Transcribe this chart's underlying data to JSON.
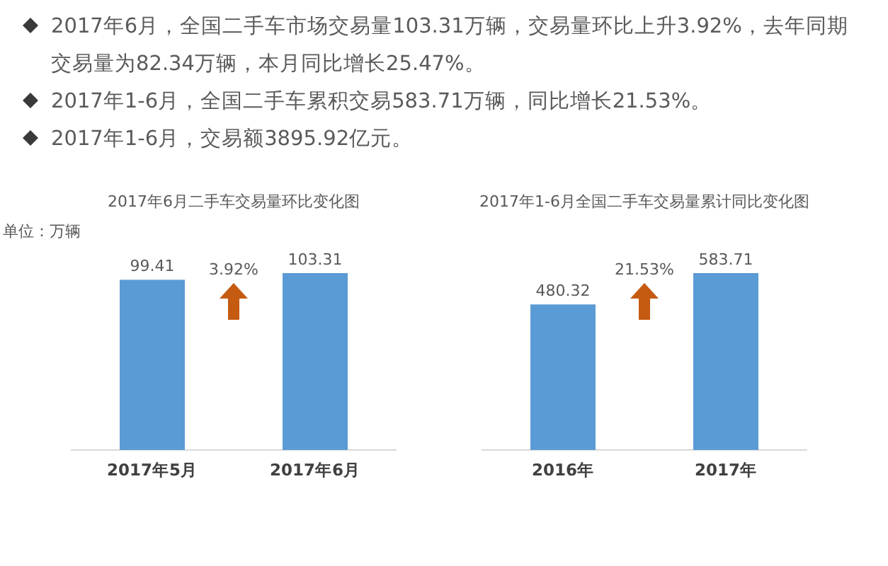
{
  "chart_data": [
    {
      "type": "other",
      "annotations": [
        "2017年6月，全国二手车市场交易量103.31万辆，交易量环比上升3.92%，去年同期交易量为82.34万辆，本月同比增长25.47%。",
        "2017年1-6月，全国二手车累积交易583.71万辆，同比增长21.53%。",
        "2017年1-6月，交易额3895.92亿元。"
      ]
    },
    {
      "type": "bar",
      "title": "2017年6月二手车交易量环比变化图",
      "ylabel": "单位：万辆",
      "categories": [
        "2017年5月",
        "2017年6月"
      ],
      "values": [
        99.41,
        103.31
      ],
      "color": "#5b9bd5",
      "data_labels": true,
      "annotations": [
        "3.92%"
      ]
    },
    {
      "type": "bar",
      "title": "2017年1-6月全国二手车交易量累计同比变化图",
      "categories": [
        "2016年",
        "2017年"
      ],
      "values": [
        480.32,
        583.71
      ],
      "color": "#5b9bd5",
      "data_labels": true,
      "annotations": [
        "21.53%"
      ]
    }
  ]
}
